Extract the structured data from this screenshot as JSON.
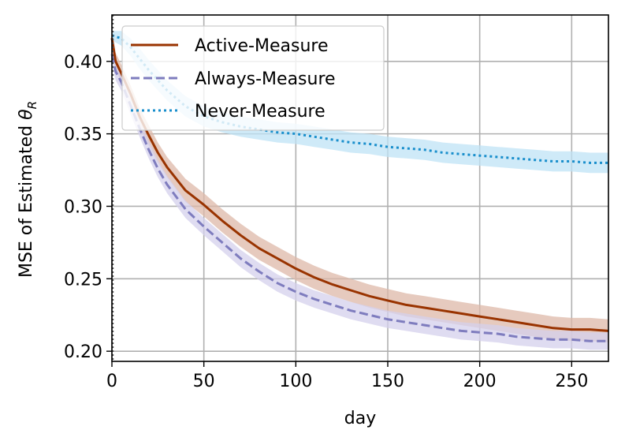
{
  "chart_data": {
    "type": "line",
    "title": "",
    "xlabel": "day",
    "ylabel_prefix": "MSE of Estimated ",
    "ylabel_symbol": "θ",
    "ylabel_subscript": "R",
    "xlim": [
      0,
      270
    ],
    "ylim": [
      0.193,
      0.432
    ],
    "xticks": [
      0,
      50,
      100,
      150,
      200,
      250
    ],
    "xtick_labels": [
      "0",
      "50",
      "100",
      "150",
      "200",
      "250"
    ],
    "yticks": [
      0.2,
      0.25,
      0.3,
      0.35,
      0.4
    ],
    "ytick_labels": [
      "0.20",
      "0.25",
      "0.30",
      "0.35",
      "0.40"
    ],
    "grid": true,
    "legend_position": "top-left",
    "vertical_marker_x": 0,
    "x": [
      0,
      2,
      5,
      10,
      15,
      20,
      25,
      30,
      40,
      50,
      60,
      70,
      80,
      90,
      100,
      110,
      120,
      130,
      140,
      150,
      160,
      170,
      180,
      190,
      200,
      210,
      220,
      230,
      240,
      250,
      260,
      270
    ],
    "series": [
      {
        "name": "Active-Measure",
        "color": "#993300",
        "style": "solid",
        "values": [
          0.416,
          0.4,
          0.392,
          0.378,
          0.362,
          0.349,
          0.337,
          0.327,
          0.311,
          0.301,
          0.29,
          0.28,
          0.271,
          0.264,
          0.257,
          0.251,
          0.246,
          0.242,
          0.238,
          0.235,
          0.232,
          0.23,
          0.228,
          0.226,
          0.224,
          0.222,
          0.22,
          0.218,
          0.216,
          0.215,
          0.215,
          0.214
        ],
        "band_halfwidth": [
          0.006,
          0.006,
          0.006,
          0.006,
          0.006,
          0.007,
          0.007,
          0.007,
          0.008,
          0.008,
          0.008,
          0.008,
          0.008,
          0.008,
          0.008,
          0.008,
          0.008,
          0.008,
          0.008,
          0.008,
          0.008,
          0.008,
          0.008,
          0.008,
          0.008,
          0.008,
          0.008,
          0.008,
          0.008,
          0.008,
          0.008,
          0.008
        ],
        "band_color": "#ddb8a8"
      },
      {
        "name": "Always-Measure",
        "color": "#7e7cbe",
        "style": "dashed",
        "values": [
          0.405,
          0.393,
          0.386,
          0.37,
          0.354,
          0.339,
          0.326,
          0.315,
          0.298,
          0.286,
          0.275,
          0.264,
          0.255,
          0.247,
          0.241,
          0.236,
          0.232,
          0.228,
          0.225,
          0.222,
          0.22,
          0.218,
          0.216,
          0.214,
          0.213,
          0.212,
          0.21,
          0.209,
          0.208,
          0.208,
          0.207,
          0.207
        ],
        "band_halfwidth": [
          0.006,
          0.006,
          0.006,
          0.006,
          0.006,
          0.006,
          0.006,
          0.006,
          0.006,
          0.006,
          0.006,
          0.006,
          0.006,
          0.006,
          0.006,
          0.006,
          0.006,
          0.006,
          0.006,
          0.006,
          0.006,
          0.006,
          0.006,
          0.006,
          0.006,
          0.006,
          0.006,
          0.006,
          0.006,
          0.006,
          0.006,
          0.006
        ],
        "band_color": "#d4d0ec"
      },
      {
        "name": "Never-Measure",
        "color": "#1a8fcc",
        "style": "dotted",
        "values": [
          0.418,
          0.417,
          0.416,
          0.41,
          0.402,
          0.394,
          0.387,
          0.38,
          0.369,
          0.362,
          0.358,
          0.355,
          0.353,
          0.351,
          0.35,
          0.348,
          0.346,
          0.344,
          0.343,
          0.341,
          0.34,
          0.339,
          0.337,
          0.336,
          0.335,
          0.334,
          0.333,
          0.332,
          0.331,
          0.331,
          0.33,
          0.33
        ],
        "band_halfwidth": [
          0.003,
          0.004,
          0.005,
          0.006,
          0.007,
          0.007,
          0.007,
          0.007,
          0.007,
          0.007,
          0.007,
          0.007,
          0.007,
          0.007,
          0.007,
          0.007,
          0.007,
          0.007,
          0.007,
          0.007,
          0.007,
          0.007,
          0.007,
          0.007,
          0.007,
          0.007,
          0.007,
          0.007,
          0.007,
          0.007,
          0.007,
          0.007
        ],
        "band_color": "#bfe3f5"
      }
    ]
  }
}
